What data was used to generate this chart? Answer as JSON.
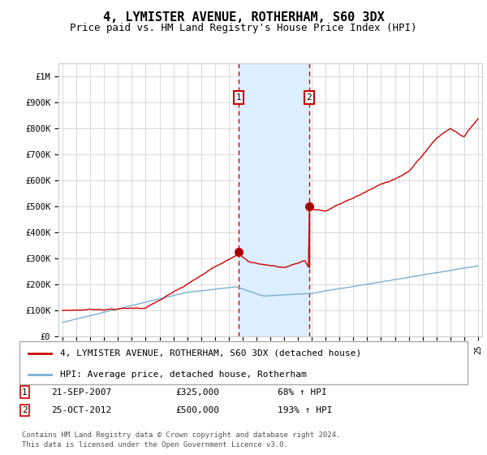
{
  "title": "4, LYMISTER AVENUE, ROTHERHAM, S60 3DX",
  "subtitle": "Price paid vs. HM Land Registry's House Price Index (HPI)",
  "title_fontsize": 11,
  "subtitle_fontsize": 9,
  "x_start_year": 1995,
  "x_end_year": 2025,
  "ylim": [
    0,
    1050000
  ],
  "yticks": [
    0,
    100000,
    200000,
    300000,
    400000,
    500000,
    600000,
    700000,
    800000,
    900000,
    1000000
  ],
  "ytick_labels": [
    "£0",
    "£100K",
    "£200K",
    "£300K",
    "£400K",
    "£500K",
    "£600K",
    "£700K",
    "£800K",
    "£900K",
    "£1M"
  ],
  "sale1_year": 2007.72,
  "sale1_price": 325000,
  "sale1_label": "21-SEP-2007",
  "sale1_pct": "68%",
  "sale2_year": 2012.8,
  "sale2_price": 500000,
  "sale2_label": "25-OCT-2012",
  "sale2_pct": "193%",
  "red_line_color": "#cc0000",
  "blue_line_color": "#7aafd4",
  "shade_color": "#ddeeff",
  "vline_color": "#cc0000",
  "legend_label1": "4, LYMISTER AVENUE, ROTHERHAM, S60 3DX (detached house)",
  "legend_label2": "HPI: Average price, detached house, Rotherham",
  "footer1": "Contains HM Land Registry data © Crown copyright and database right 2024.",
  "footer2": "This data is licensed under the Open Government Licence v3.0.",
  "bg_color": "#ffffff",
  "grid_color": "#cccccc"
}
